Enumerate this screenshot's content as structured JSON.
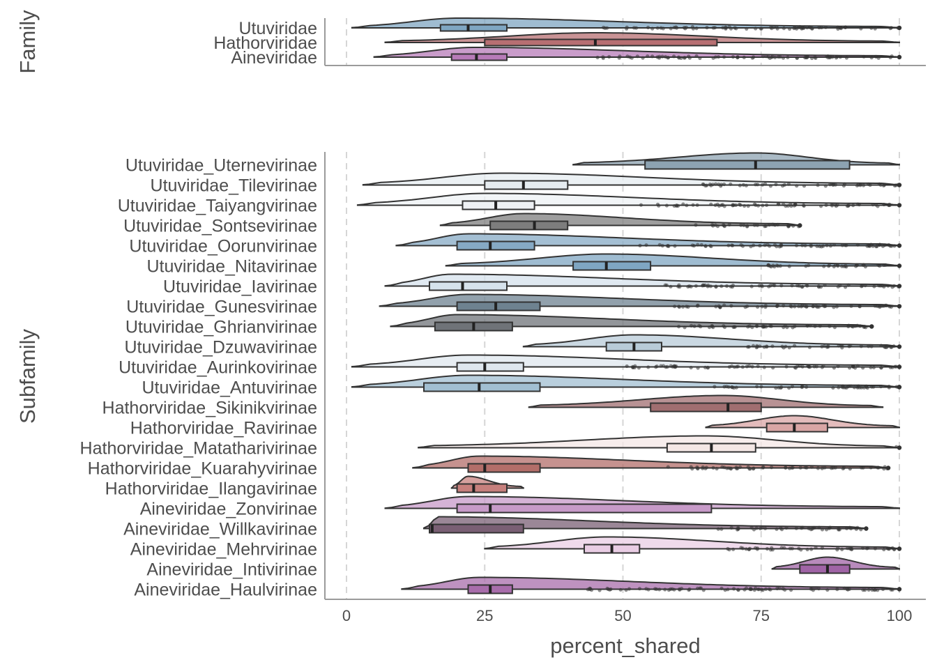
{
  "chart_data": {
    "type": "raincloud",
    "xlabel": "percent_shared",
    "xlim": [
      0,
      100
    ],
    "xticks": [
      0,
      25,
      50,
      75,
      100
    ],
    "grid": "vertical-dashed",
    "panels": [
      {
        "id": "family",
        "ylabel": "Family",
        "groups": [
          {
            "name": "Utuviridae",
            "color": "#7fa6c2",
            "min": 1,
            "q1": 17,
            "median": 22,
            "q3": 29,
            "max": 100,
            "mode": 20,
            "outlier_start": 46
          },
          {
            "name": "Hathorviridae",
            "color": "#b76f72",
            "min": 7,
            "q1": 25,
            "median": 45,
            "q3": 67,
            "max": 100,
            "mode": 45,
            "outlier_start": null
          },
          {
            "name": "Aineviridae",
            "color": "#b77bb8",
            "min": 5,
            "q1": 19,
            "median": 23.5,
            "q3": 29,
            "max": 100,
            "mode": 23,
            "outlier_start": 44
          }
        ]
      },
      {
        "id": "subfamily",
        "ylabel": "Subfamily",
        "groups": [
          {
            "name": "Utuviridae_Uternevirinae",
            "color": "#8da3b2",
            "min": 41,
            "q1": 54,
            "median": 74,
            "q3": 91,
            "max": 100,
            "mode": 74,
            "outlier_start": null
          },
          {
            "name": "Utuviridae_Tilevirinae",
            "color": "#e6ecf0",
            "min": 3,
            "q1": 25,
            "median": 32,
            "q3": 40,
            "max": 100,
            "mode": 28,
            "outlier_start": 64
          },
          {
            "name": "Utuviridae_Taiyangvirinae",
            "color": "#eef1f4",
            "min": 2,
            "q1": 21,
            "median": 27,
            "q3": 34,
            "max": 100,
            "mode": 25,
            "outlier_start": 53
          },
          {
            "name": "Utuviridae_Sontsevirinae",
            "color": "#7d7d7d",
            "min": 17,
            "q1": 26,
            "median": 34,
            "q3": 40,
            "max": 82,
            "mode": 32,
            "outlier_start": 63
          },
          {
            "name": "Utuviridae_Oorunvirinae",
            "color": "#86a9c4",
            "min": 9,
            "q1": 20,
            "median": 26,
            "q3": 34,
            "max": 100,
            "mode": 22,
            "outlier_start": 53
          },
          {
            "name": "Utuviridae_Nitavirinae",
            "color": "#7fa6c2",
            "min": 18,
            "q1": 41,
            "median": 47,
            "q3": 55,
            "max": 100,
            "mode": 47,
            "outlier_start": 76
          },
          {
            "name": "Utuviridae_Iavirinae",
            "color": "#d6e2ec",
            "min": 7,
            "q1": 15,
            "median": 21,
            "q3": 29,
            "max": 100,
            "mode": 19,
            "outlier_start": 57
          },
          {
            "name": "Utuviridae_Gunesvirinae",
            "color": "#6e8290",
            "min": 6,
            "q1": 20,
            "median": 27,
            "q3": 35,
            "max": 100,
            "mode": 22,
            "outlier_start": 59
          },
          {
            "name": "Utuviridae_Ghrianvirinae",
            "color": "#6f7378",
            "min": 8,
            "q1": 16,
            "median": 23,
            "q3": 30,
            "max": 95,
            "mode": 20,
            "outlier_start": 60
          },
          {
            "name": "Utuviridae_Dzuwavirinae",
            "color": "#b8cbd8",
            "min": 32,
            "q1": 47,
            "median": 52,
            "q3": 57,
            "max": 100,
            "mode": 52,
            "outlier_start": 72
          },
          {
            "name": "Utuviridae_Aurinkovirinae",
            "color": "#dfe7ee",
            "min": 1,
            "q1": 20,
            "median": 25,
            "q3": 32,
            "max": 100,
            "mode": 22,
            "outlier_start": 50
          },
          {
            "name": "Utuviridae_Antuvirinae",
            "color": "#a2bfd2",
            "min": 1,
            "q1": 14,
            "median": 24,
            "q3": 35,
            "max": 100,
            "mode": 22,
            "outlier_start": 66
          },
          {
            "name": "Hathorviridae_Sikinikvirinae",
            "color": "#a06e70",
            "min": 33,
            "q1": 55,
            "median": 69,
            "q3": 75,
            "max": 97,
            "mode": 68,
            "outlier_start": null
          },
          {
            "name": "Hathorviridae_Ravirinae",
            "color": "#d9a6a5",
            "min": 65,
            "q1": 76,
            "median": 81,
            "q3": 87,
            "max": 100,
            "mode": 81,
            "outlier_start": null
          },
          {
            "name": "Hathorviridae_Matatharivirinae",
            "color": "#f4e7e5",
            "min": 13,
            "q1": 58,
            "median": 66,
            "q3": 74,
            "max": 100,
            "mode": 65,
            "outlier_start": 99
          },
          {
            "name": "Hathorviridae_Kuarahyvirinae",
            "color": "#b36e69",
            "min": 12,
            "q1": 22,
            "median": 25,
            "q3": 35,
            "max": 98,
            "mode": 24,
            "outlier_start": 58
          },
          {
            "name": "Hathorviridae_Ilangavirinae",
            "color": "#c7807d",
            "min": 19,
            "q1": 20,
            "median": 23,
            "q3": 29,
            "max": 32,
            "mode": 22,
            "outlier_start": null
          },
          {
            "name": "Aineviridae_Zonvirinae",
            "color": "#c79ac8",
            "min": 7,
            "q1": 20,
            "median": 26,
            "q3": 66,
            "max": 100,
            "mode": 22,
            "outlier_start": null
          },
          {
            "name": "Aineviridae_Willkavirinae",
            "color": "#7a5f74",
            "min": 14,
            "q1": 15,
            "median": 15.5,
            "q3": 32,
            "max": 94,
            "mode": 16,
            "outlier_start": 66
          },
          {
            "name": "Aineviridae_Mehrvirinae",
            "color": "#e9cde4",
            "min": 25,
            "q1": 43,
            "median": 48,
            "q3": 53,
            "max": 100,
            "mode": 47,
            "outlier_start": 68
          },
          {
            "name": "Aineviridae_Intivirinae",
            "color": "#a064a6",
            "min": 77,
            "q1": 82,
            "median": 87,
            "q3": 91,
            "max": 100,
            "mode": 87,
            "outlier_start": null
          },
          {
            "name": "Aineviridae_Haulvirinae",
            "color": "#a86dab",
            "min": 10,
            "q1": 22,
            "median": 26,
            "q3": 30,
            "max": 100,
            "mode": 24,
            "outlier_start": 43
          }
        ]
      }
    ]
  }
}
